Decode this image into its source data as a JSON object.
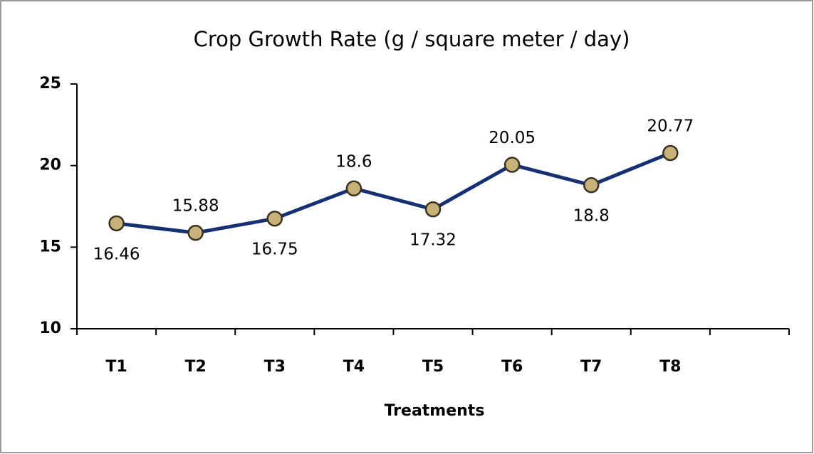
{
  "chart_data": {
    "type": "line",
    "title": "Crop Growth Rate (g / square meter / day)",
    "x_label": "Treatments",
    "categories": [
      "T1",
      "T2",
      "T3",
      "T4",
      "T5",
      "T6",
      "T7",
      "T8",
      null
    ],
    "series": [
      {
        "name": "Crop Growth Rate",
        "color": "#172f73",
        "marker_color": "#c9b27a",
        "values": [
          16.46,
          15.88,
          16.75,
          18.6,
          17.32,
          20.05,
          18.8,
          20.77,
          null
        ]
      }
    ],
    "ylim": [
      10,
      25
    ],
    "yticks": [
      10,
      15,
      20,
      25
    ],
    "grid": false,
    "legend": false
  }
}
